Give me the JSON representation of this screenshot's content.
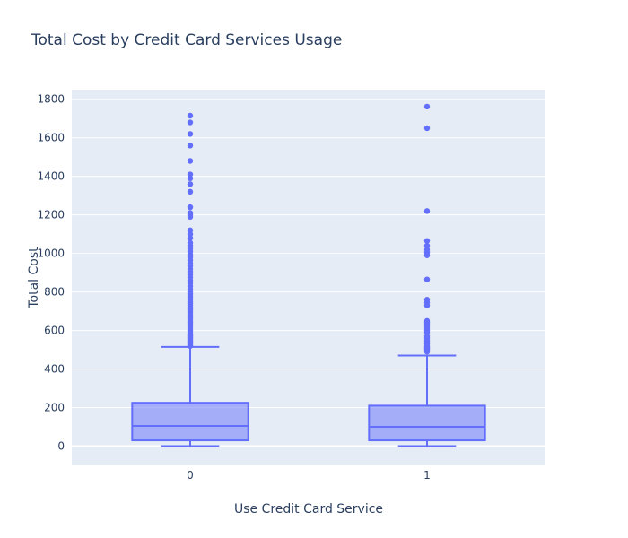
{
  "chart_data": {
    "type": "box",
    "title": "Total Cost by Credit Card Services Usage",
    "xlabel": "Use Credit Card Service",
    "ylabel": "Total Cost",
    "categories": [
      "0",
      "1"
    ],
    "ylim": [
      -100,
      1850
    ],
    "yticks": [
      0,
      200,
      400,
      600,
      800,
      1000,
      1200,
      1400,
      1600,
      1800
    ],
    "color": "#636efa",
    "fill": "rgba(99,110,250,0.5)",
    "plot_bg": "#e5ecf6",
    "boxes": [
      {
        "category": "0",
        "lower_whisker": 0,
        "q1": 30,
        "median": 105,
        "q3": 225,
        "upper_whisker": 515,
        "outliers": [
          520,
          525,
          530,
          535,
          540,
          545,
          550,
          555,
          560,
          565,
          570,
          575,
          580,
          590,
          600,
          610,
          620,
          630,
          640,
          650,
          660,
          670,
          680,
          690,
          700,
          710,
          720,
          730,
          740,
          750,
          760,
          770,
          780,
          790,
          800,
          815,
          830,
          845,
          860,
          875,
          890,
          905,
          920,
          935,
          950,
          965,
          980,
          995,
          1010,
          1025,
          1040,
          1055,
          1080,
          1100,
          1120,
          1190,
          1200,
          1210,
          1240,
          1320,
          1360,
          1390,
          1410,
          1480,
          1560,
          1620,
          1680,
          1715
        ]
      },
      {
        "category": "1",
        "lower_whisker": 0,
        "q1": 30,
        "median": 100,
        "q3": 210,
        "upper_whisker": 470,
        "outliers": [
          490,
          500,
          505,
          510,
          515,
          520,
          530,
          540,
          550,
          560,
          570,
          590,
          600,
          610,
          620,
          630,
          640,
          650,
          730,
          745,
          760,
          865,
          990,
          1005,
          1020,
          1040,
          1065,
          1220,
          1650,
          1762
        ]
      }
    ]
  }
}
